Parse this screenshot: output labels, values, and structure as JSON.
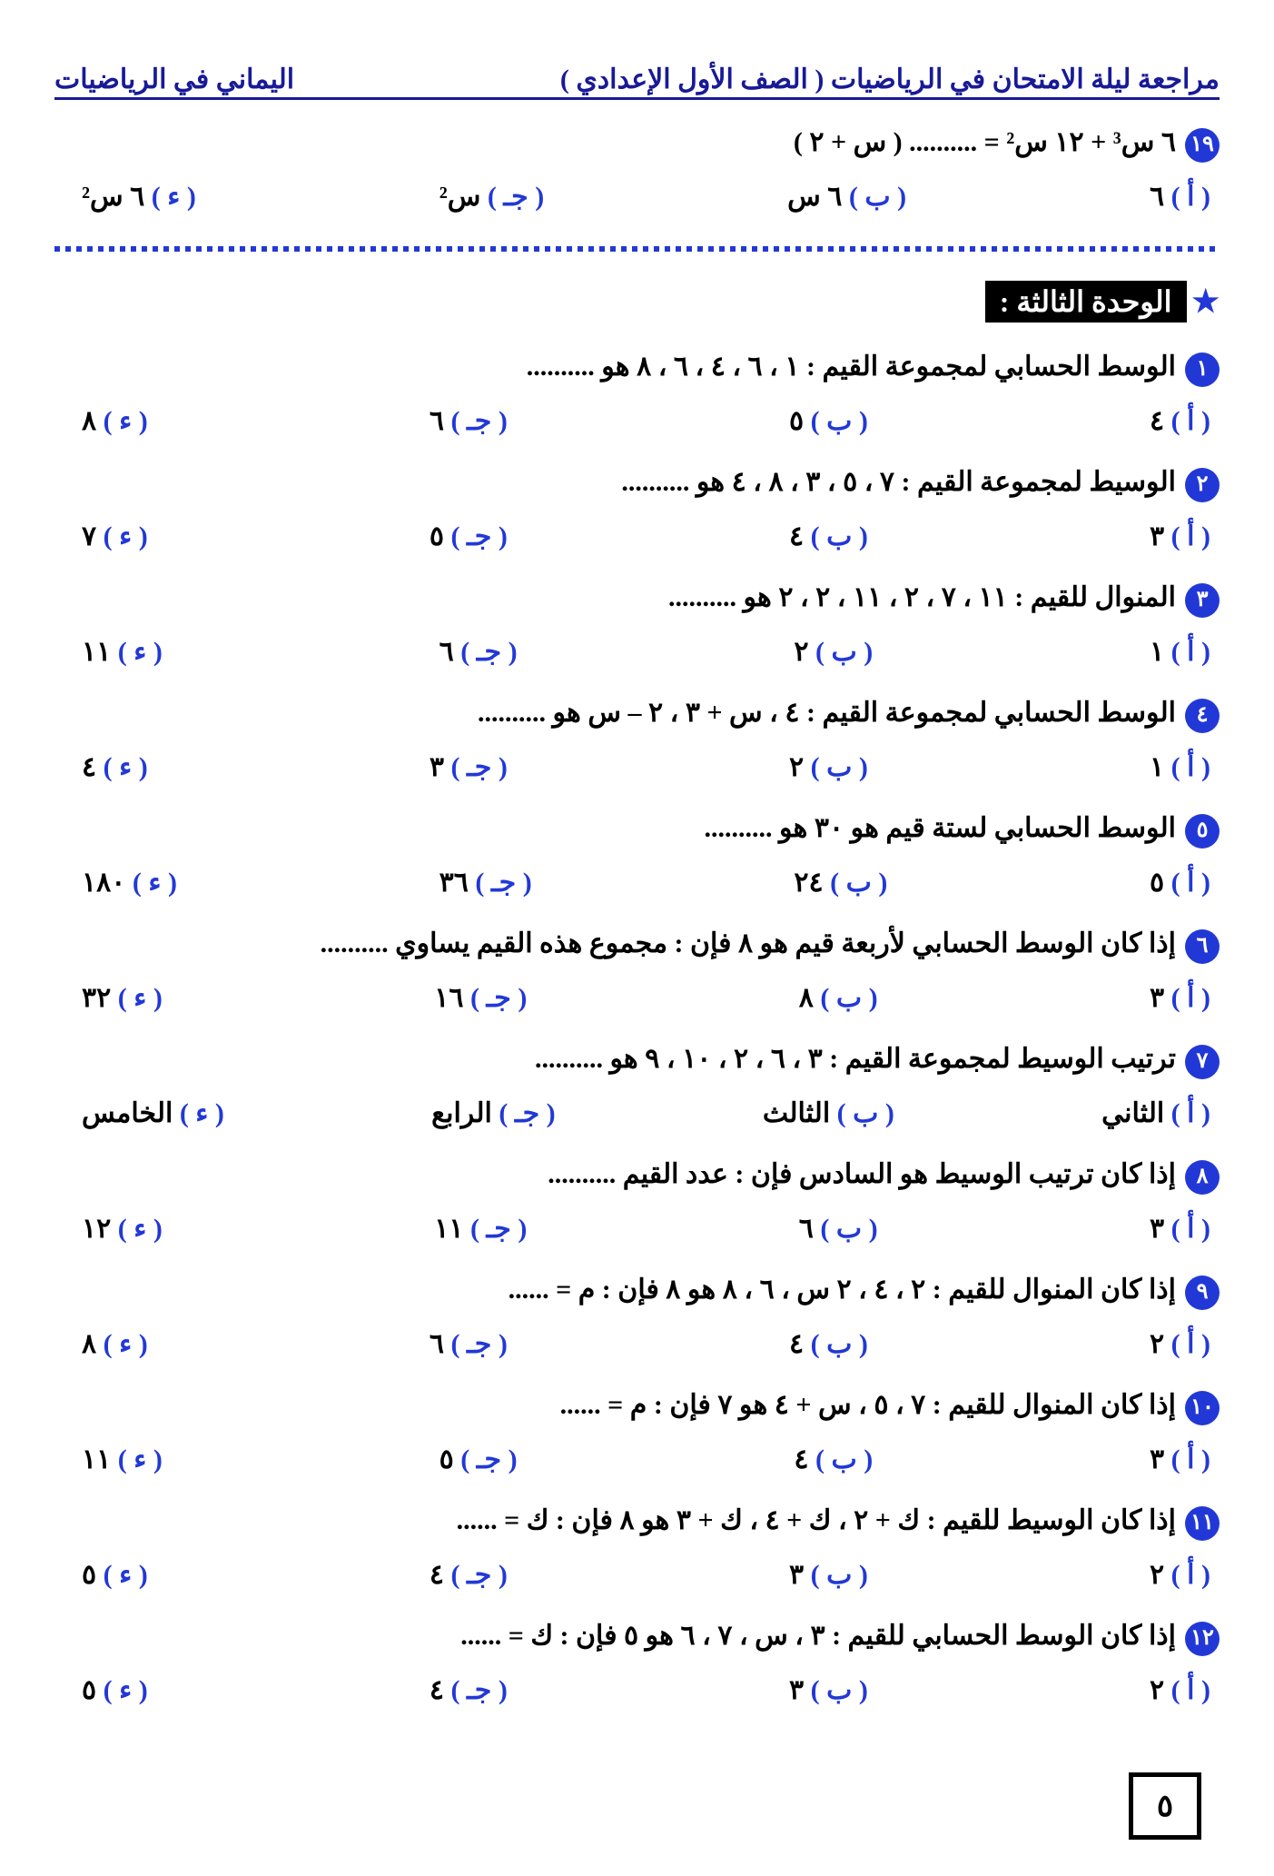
{
  "header": {
    "right": "مراجعة ليلة الامتحان في الرياضيات ( الصف الأول الإعدادي )",
    "left": "اليماني في الرياضيات"
  },
  "q19": {
    "n": "١٩",
    "text": "٦ س³ + ١٢ س² = .......... ( س + ٢ )",
    "opts": {
      "a": "٦",
      "b": "٦ س",
      "c": "س²",
      "d": "٦ س²"
    }
  },
  "unit": "الوحدة الثالثة :",
  "questions": [
    {
      "n": "١",
      "text": "الوسط الحسابي لمجموعة القيم : ١ ، ٦ ، ٤ ، ٦ ، ٨ هو ..........",
      "opts": {
        "a": "٤",
        "b": "٥",
        "c": "٦",
        "d": "٨"
      }
    },
    {
      "n": "٢",
      "text": "الوسيط لمجموعة القيم : ٧ ، ٥ ، ٣ ، ٨ ، ٤ هو ..........",
      "opts": {
        "a": "٣",
        "b": "٤",
        "c": "٥",
        "d": "٧"
      }
    },
    {
      "n": "٣",
      "text": "المنوال للقيم : ١١ ، ٧ ، ٢ ، ١١ ، ٢ ، ٢ هو ..........",
      "opts": {
        "a": "١",
        "b": "٢",
        "c": "٦",
        "d": "١١"
      }
    },
    {
      "n": "٤",
      "text": "الوسط الحسابي لمجموعة القيم : ٤ ، س + ٣ ، ٢ – س هو ..........",
      "opts": {
        "a": "١",
        "b": "٢",
        "c": "٣",
        "d": "٤"
      }
    },
    {
      "n": "٥",
      "text": "الوسط الحسابي لستة قيم هو ٣٠ هو ..........",
      "opts": {
        "a": "٥",
        "b": "٢٤",
        "c": "٣٦",
        "d": "١٨٠"
      }
    },
    {
      "n": "٦",
      "text": "إذا كان الوسط الحسابي لأربعة قيم هو ٨ فإن : مجموع هذه القيم يساوي ..........",
      "opts": {
        "a": "٣",
        "b": "٨",
        "c": "١٦",
        "d": "٣٢"
      }
    },
    {
      "n": "٧",
      "text": "ترتيب الوسيط لمجموعة القيم : ٣ ، ٦ ، ٢ ، ١٠ ، ٩ هو ..........",
      "opts": {
        "a": "الثاني",
        "b": "الثالث",
        "c": "الرابع",
        "d": "الخامس"
      }
    },
    {
      "n": "٨",
      "text": "إذا كان ترتيب الوسيط هو السادس   فإن : عدد القيم ..........",
      "opts": {
        "a": "٣",
        "b": "٦",
        "c": "١١",
        "d": "١٢"
      }
    },
    {
      "n": "٩",
      "text": "إذا كان المنوال للقيم : ٢ ، ٤ ، ٢ س ، ٦ ، ٨ هو ٨   فإن : م = ......",
      "opts": {
        "a": "٢",
        "b": "٤",
        "c": "٦",
        "d": "٨"
      }
    },
    {
      "n": "١٠",
      "text": "إذا كان المنوال للقيم : ٧ ، ٥ ، س + ٤ هو ٧ فإن : م = ......",
      "opts": {
        "a": "٣",
        "b": "٤",
        "c": "٥",
        "d": "١١"
      }
    },
    {
      "n": "١١",
      "text": "إذا كان الوسيط للقيم : ك + ٢ ، ك + ٤ ، ك + ٣ هو ٨  فإن : ك = ......",
      "opts": {
        "a": "٢",
        "b": "٣",
        "c": "٤",
        "d": "٥"
      }
    },
    {
      "n": "١٢",
      "text": "إذا كان الوسط الحسابي للقيم : ٣ ، س ، ٧ ، ٦ هو ٥  فإن : ك = ......",
      "opts": {
        "a": "٢",
        "b": "٣",
        "c": "٤",
        "d": "٥"
      }
    }
  ],
  "labels": {
    "a": "( أ )",
    "b": "( ب )",
    "c": "( جـ )",
    "d": "( ء )"
  },
  "pagenum": "٥"
}
